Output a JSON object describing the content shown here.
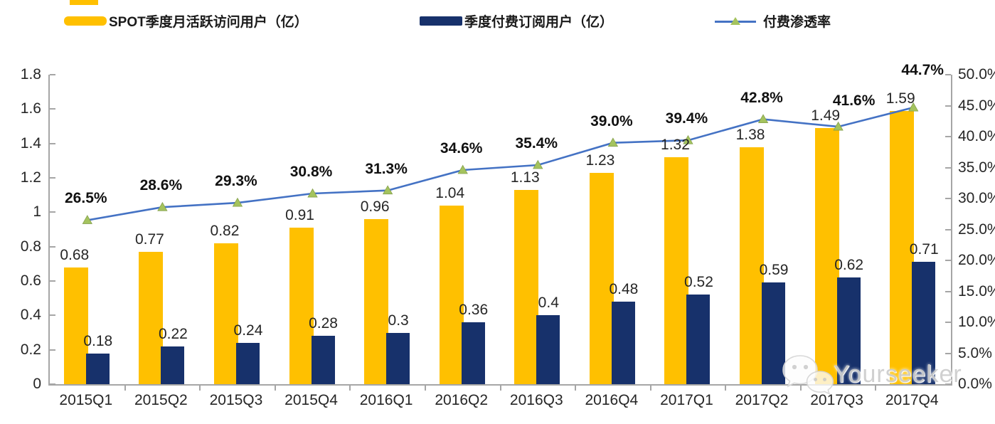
{
  "legend": [
    {
      "label": "SPOT季度月活跃访问用户（亿）",
      "swatch": "bar",
      "color": "#FFC000"
    },
    {
      "label": "季度付费订阅用户（亿）",
      "swatch": "bar",
      "color": "#17316B"
    },
    {
      "label": "付费渗透率",
      "swatch": "line",
      "color": "#4472C4",
      "marker_color": "#A4C35E"
    }
  ],
  "chart_data": {
    "type": "bar+line combo",
    "categories": [
      "2015Q1",
      "2015Q2",
      "2015Q3",
      "2015Q4",
      "2016Q1",
      "2016Q2",
      "2016Q3",
      "2016Q4",
      "2017Q1",
      "2017Q2",
      "2017Q3",
      "2017Q4"
    ],
    "series": [
      {
        "name": "SPOT季度月活跃访问用户（亿）",
        "type": "bar",
        "axis": "left",
        "color": "#FFC000",
        "values": [
          0.68,
          0.77,
          0.82,
          0.91,
          0.96,
          1.04,
          1.13,
          1.23,
          1.32,
          1.38,
          1.49,
          1.59
        ],
        "labels": [
          "0.68",
          "0.77",
          "0.82",
          "0.91",
          "0.96",
          "1.04",
          "1.13",
          "1.23",
          "1.32",
          "1.38",
          "1.49",
          "1.59"
        ]
      },
      {
        "name": "季度付费订阅用户（亿）",
        "type": "bar",
        "axis": "left",
        "color": "#17316B",
        "values": [
          0.18,
          0.22,
          0.24,
          0.28,
          0.3,
          0.36,
          0.4,
          0.48,
          0.52,
          0.59,
          0.62,
          0.71
        ],
        "labels": [
          "0.18",
          "0.22",
          "0.24",
          "0.28",
          "0.3",
          "0.36",
          "0.4",
          "0.48",
          "0.52",
          "0.59",
          "0.62",
          "0.71"
        ]
      },
      {
        "name": "付费渗透率",
        "type": "line",
        "axis": "right",
        "color": "#4472C4",
        "marker": "triangle",
        "marker_color": "#A4C35E",
        "values": [
          26.5,
          28.6,
          29.3,
          30.8,
          31.3,
          34.6,
          35.4,
          39.0,
          39.4,
          42.8,
          41.6,
          44.7
        ],
        "labels": [
          "26.5%",
          "28.6%",
          "29.3%",
          "30.8%",
          "31.3%",
          "34.6%",
          "35.4%",
          "39.0%",
          "39.4%",
          "42.8%",
          "41.6%",
          "44.7%"
        ]
      }
    ],
    "left_axis": {
      "min": 0,
      "max": 1.8,
      "ticks": [
        "0",
        "0.2",
        "0.4",
        "0.6",
        "0.8",
        "1",
        "1.2",
        "1.4",
        "1.6",
        "1.8"
      ]
    },
    "right_axis": {
      "min": 0,
      "max": 50,
      "ticks": [
        "0.0%",
        "5.0%",
        "10.0%",
        "15.0%",
        "20.0%",
        "25.0%",
        "30.0%",
        "35.0%",
        "40.0%",
        "45.0%",
        "50.0%"
      ]
    },
    "grid": false,
    "legend_position": "top"
  },
  "watermark": {
    "text": "Yourseeker",
    "icon": "wechat-icon"
  }
}
